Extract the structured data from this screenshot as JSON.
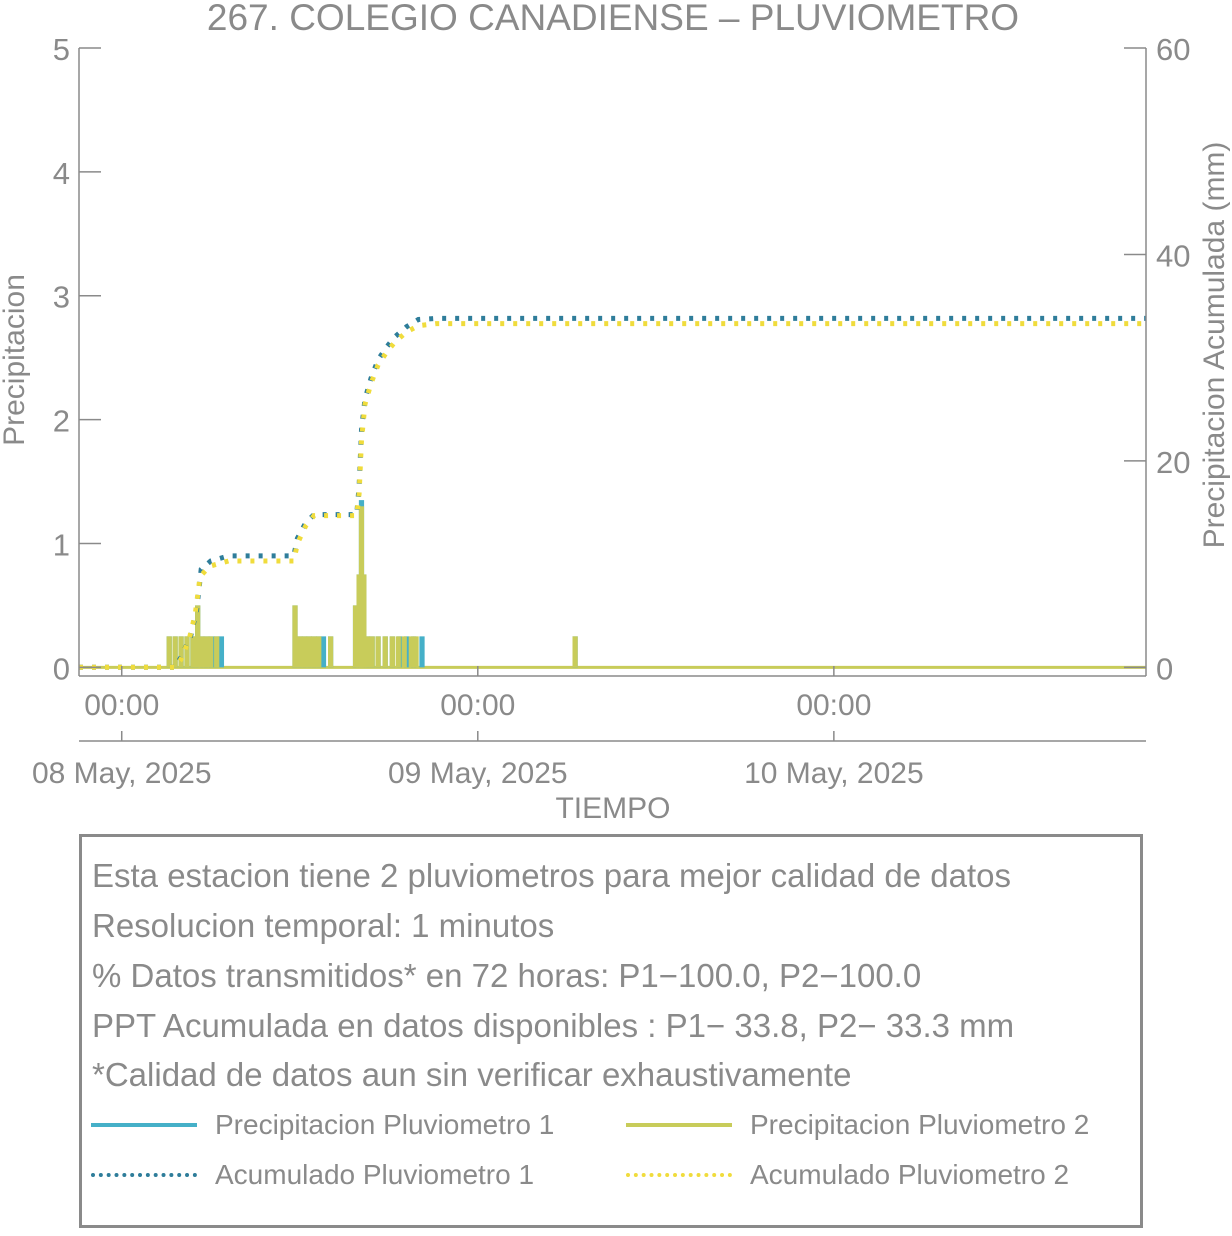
{
  "chart_data": {
    "type": "line",
    "title": "267. COLEGIO CANADIENSE – PLUVIOMETRO",
    "xlabel": "TIEMPO",
    "ylabel": "Precipitacion",
    "y2label": "Precipitacion Acumulada (mm)",
    "x_unit": "hours since 08 May 2025 00:00",
    "xlim": [
      -3.6,
      86.3
    ],
    "ylim": [
      -0.07,
      5
    ],
    "y2lim": [
      -0.84,
      60
    ],
    "yticks": [
      "0",
      "1",
      "2",
      "3",
      "4",
      "5"
    ],
    "y2ticks": [
      "0",
      "20",
      "40",
      "60"
    ],
    "xticks": [
      {
        "x": 0,
        "time": "00:00",
        "date": "08 May, 2025"
      },
      {
        "x": 30,
        "time": "00:00",
        "date": "09 May, 2025"
      },
      {
        "x": 60,
        "time": "00:00",
        "date": "10 May, 2025"
      }
    ],
    "grid": false,
    "series": [
      {
        "name": "Precipitacion Pluviometro 1",
        "axis": "left",
        "style": "bars",
        "color": "#45b0c8",
        "points": [
          [
            4.0,
            0.25
          ],
          [
            4.5,
            0.25
          ],
          [
            5.0,
            0.25
          ],
          [
            5.5,
            0.25
          ],
          [
            6.0,
            0.25
          ],
          [
            6.4,
            0.5
          ],
          [
            6.8,
            0.25
          ],
          [
            7.2,
            0.25
          ],
          [
            7.6,
            0.25
          ],
          [
            8.0,
            0.25
          ],
          [
            8.4,
            0.25
          ],
          [
            14.6,
            0.5
          ],
          [
            15.0,
            0.25
          ],
          [
            15.4,
            0.25
          ],
          [
            15.8,
            0.25
          ],
          [
            16.2,
            0.25
          ],
          [
            16.6,
            0.25
          ],
          [
            17.0,
            0.25
          ],
          [
            17.6,
            0.25
          ],
          [
            19.7,
            0.5
          ],
          [
            20.0,
            0.75
          ],
          [
            20.2,
            1.35
          ],
          [
            20.4,
            0.75
          ],
          [
            20.7,
            0.25
          ],
          [
            21.1,
            0.25
          ],
          [
            21.6,
            0.25
          ],
          [
            22.2,
            0.25
          ],
          [
            22.8,
            0.25
          ],
          [
            23.4,
            0.25
          ],
          [
            24.0,
            0.25
          ],
          [
            24.6,
            0.25
          ],
          [
            25.3,
            0.25
          ],
          [
            38.2,
            0.25
          ]
        ]
      },
      {
        "name": "Precipitacion Pluviometro 2",
        "axis": "left",
        "style": "bars",
        "color": "#c8cc5a",
        "points": [
          [
            4.0,
            0.25
          ],
          [
            4.5,
            0.25
          ],
          [
            5.0,
            0.25
          ],
          [
            5.5,
            0.25
          ],
          [
            6.0,
            0.25
          ],
          [
            6.4,
            0.5
          ],
          [
            6.7,
            0.25
          ],
          [
            7.1,
            0.25
          ],
          [
            7.5,
            0.25
          ],
          [
            8.0,
            0.25
          ],
          [
            14.6,
            0.5
          ],
          [
            15.0,
            0.25
          ],
          [
            15.4,
            0.25
          ],
          [
            15.8,
            0.25
          ],
          [
            16.2,
            0.25
          ],
          [
            16.6,
            0.25
          ],
          [
            17.6,
            0.25
          ],
          [
            19.7,
            0.5
          ],
          [
            20.0,
            0.75
          ],
          [
            20.2,
            1.3
          ],
          [
            20.4,
            0.75
          ],
          [
            20.7,
            0.25
          ],
          [
            21.1,
            0.25
          ],
          [
            21.6,
            0.25
          ],
          [
            22.2,
            0.25
          ],
          [
            22.8,
            0.25
          ],
          [
            23.3,
            0.25
          ],
          [
            23.8,
            0.25
          ],
          [
            24.4,
            0.25
          ],
          [
            24.8,
            0.25
          ],
          [
            38.2,
            0.25
          ]
        ]
      },
      {
        "name": "Acumulado Pluviometro 1",
        "axis": "right",
        "style": "dotted",
        "color": "#2e7d9a",
        "points": [
          [
            -3.6,
            0
          ],
          [
            4.5,
            0
          ],
          [
            5.0,
            1.0
          ],
          [
            5.8,
            3.0
          ],
          [
            6.3,
            5.5
          ],
          [
            6.7,
            9.5
          ],
          [
            7.5,
            10.3
          ],
          [
            9.0,
            10.8
          ],
          [
            14.5,
            10.8
          ],
          [
            14.8,
            12.5
          ],
          [
            15.5,
            14.0
          ],
          [
            16.2,
            14.8
          ],
          [
            19.8,
            14.8
          ],
          [
            20.0,
            17.5
          ],
          [
            20.2,
            23.0
          ],
          [
            20.5,
            26.0
          ],
          [
            21.0,
            28.0
          ],
          [
            21.6,
            29.8
          ],
          [
            22.3,
            31.0
          ],
          [
            23.0,
            32.0
          ],
          [
            24.0,
            33.0
          ],
          [
            25.0,
            33.7
          ],
          [
            26.5,
            33.8
          ],
          [
            86.3,
            33.8
          ]
        ]
      },
      {
        "name": "Acumulado Pluviometro 2",
        "axis": "right",
        "style": "dotted",
        "color": "#f0dc3c",
        "points": [
          [
            -3.6,
            0
          ],
          [
            4.5,
            0
          ],
          [
            5.0,
            0.8
          ],
          [
            5.7,
            2.8
          ],
          [
            6.2,
            5.2
          ],
          [
            6.6,
            8.8
          ],
          [
            7.4,
            9.8
          ],
          [
            9.0,
            10.3
          ],
          [
            14.5,
            10.3
          ],
          [
            14.8,
            12.0
          ],
          [
            15.5,
            13.7
          ],
          [
            16.2,
            14.7
          ],
          [
            19.8,
            14.7
          ],
          [
            20.0,
            16.8
          ],
          [
            20.2,
            22.0
          ],
          [
            20.5,
            25.5
          ],
          [
            21.0,
            27.5
          ],
          [
            21.6,
            29.3
          ],
          [
            22.3,
            30.5
          ],
          [
            23.0,
            31.5
          ],
          [
            24.0,
            32.5
          ],
          [
            25.0,
            33.1
          ],
          [
            26.5,
            33.3
          ],
          [
            86.3,
            33.3
          ]
        ]
      }
    ]
  },
  "notes": [
    "Esta estacion tiene 2 pluviometros para mejor calidad de datos",
    "Resolucion temporal: 1 minutos",
    "% Datos transmitidos* en 72 horas: P1−100.0, P2−100.0",
    "PPT Acumulada en datos disponibles : P1− 33.8, P2− 33.3 mm",
    "*Calidad de datos aun sin verificar exhaustivamente"
  ],
  "legend": [
    {
      "label": "Precipitacion Pluviometro 1",
      "color": "#45b0c8",
      "style": "solid"
    },
    {
      "label": "Precipitacion Pluviometro 2",
      "color": "#c8cc5a",
      "style": "solid"
    },
    {
      "label": "Acumulado Pluviometro 1",
      "color": "#2e7d9a",
      "style": "dotted"
    },
    {
      "label": "Acumulado Pluviometro 2",
      "color": "#f0dc3c",
      "style": "dotted"
    }
  ]
}
